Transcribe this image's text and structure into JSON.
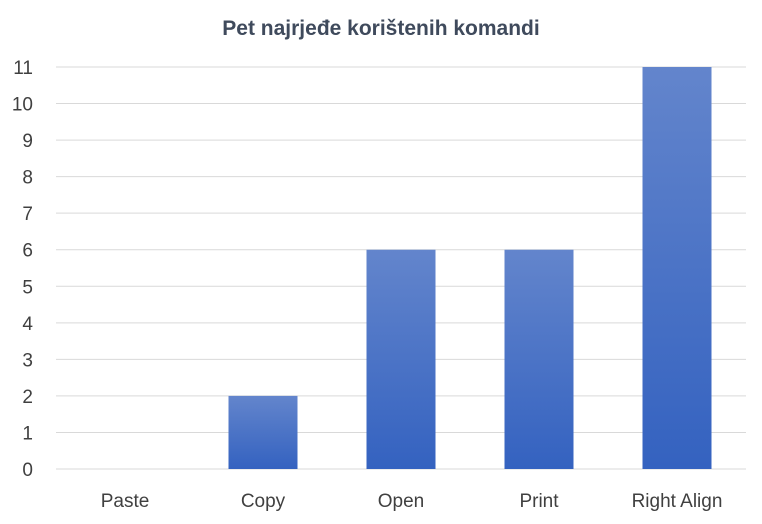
{
  "chart_data": {
    "type": "bar",
    "title": "Pet najrjeđe korištenih komandi",
    "categories": [
      "Paste",
      "Copy",
      "Open",
      "Print",
      "Right Align"
    ],
    "values": [
      0,
      2,
      6,
      6,
      11
    ],
    "ylim": [
      0,
      11
    ],
    "yticks": [
      0,
      1,
      2,
      3,
      4,
      5,
      6,
      7,
      8,
      9,
      10,
      11
    ],
    "grid": true,
    "legend": "none",
    "colors": {
      "bar_top": "#6385cc",
      "bar_bottom": "#3462c0",
      "grid": "#d9d9d9",
      "text": "#404040",
      "title": "#3f4a5c"
    }
  }
}
